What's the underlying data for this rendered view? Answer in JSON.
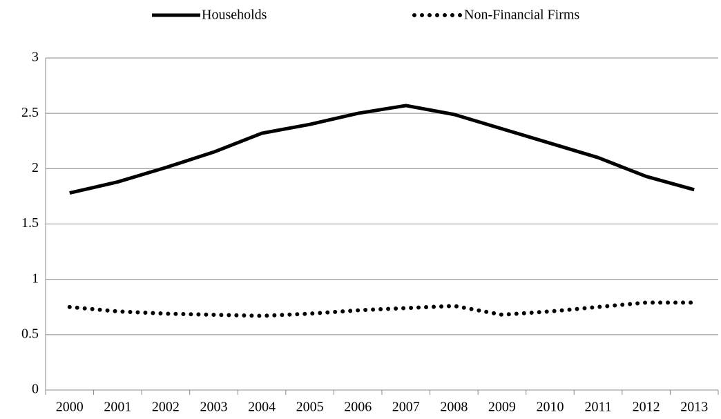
{
  "chart_data": {
    "type": "line",
    "categories": [
      "2000",
      "2001",
      "2002",
      "2003",
      "2004",
      "2005",
      "2006",
      "2007",
      "2008",
      "2009",
      "2010",
      "2011",
      "2012",
      "2013"
    ],
    "series": [
      {
        "name": "Households",
        "color": "#000000",
        "style": "solid",
        "values": [
          1.78,
          1.88,
          2.01,
          2.15,
          2.32,
          2.4,
          2.5,
          2.57,
          2.49,
          2.36,
          2.23,
          2.1,
          1.93,
          1.81
        ]
      },
      {
        "name": "Non-Financial Firms",
        "color": "#000000",
        "style": "dotted",
        "values": [
          0.75,
          0.71,
          0.69,
          0.68,
          0.67,
          0.69,
          0.72,
          0.74,
          0.76,
          0.68,
          0.71,
          0.75,
          0.79,
          0.79
        ]
      }
    ],
    "ylim": [
      0,
      3
    ],
    "yticks": [
      0,
      0.5,
      1,
      1.5,
      2,
      2.5,
      3
    ],
    "grid": true,
    "legend": "top"
  }
}
